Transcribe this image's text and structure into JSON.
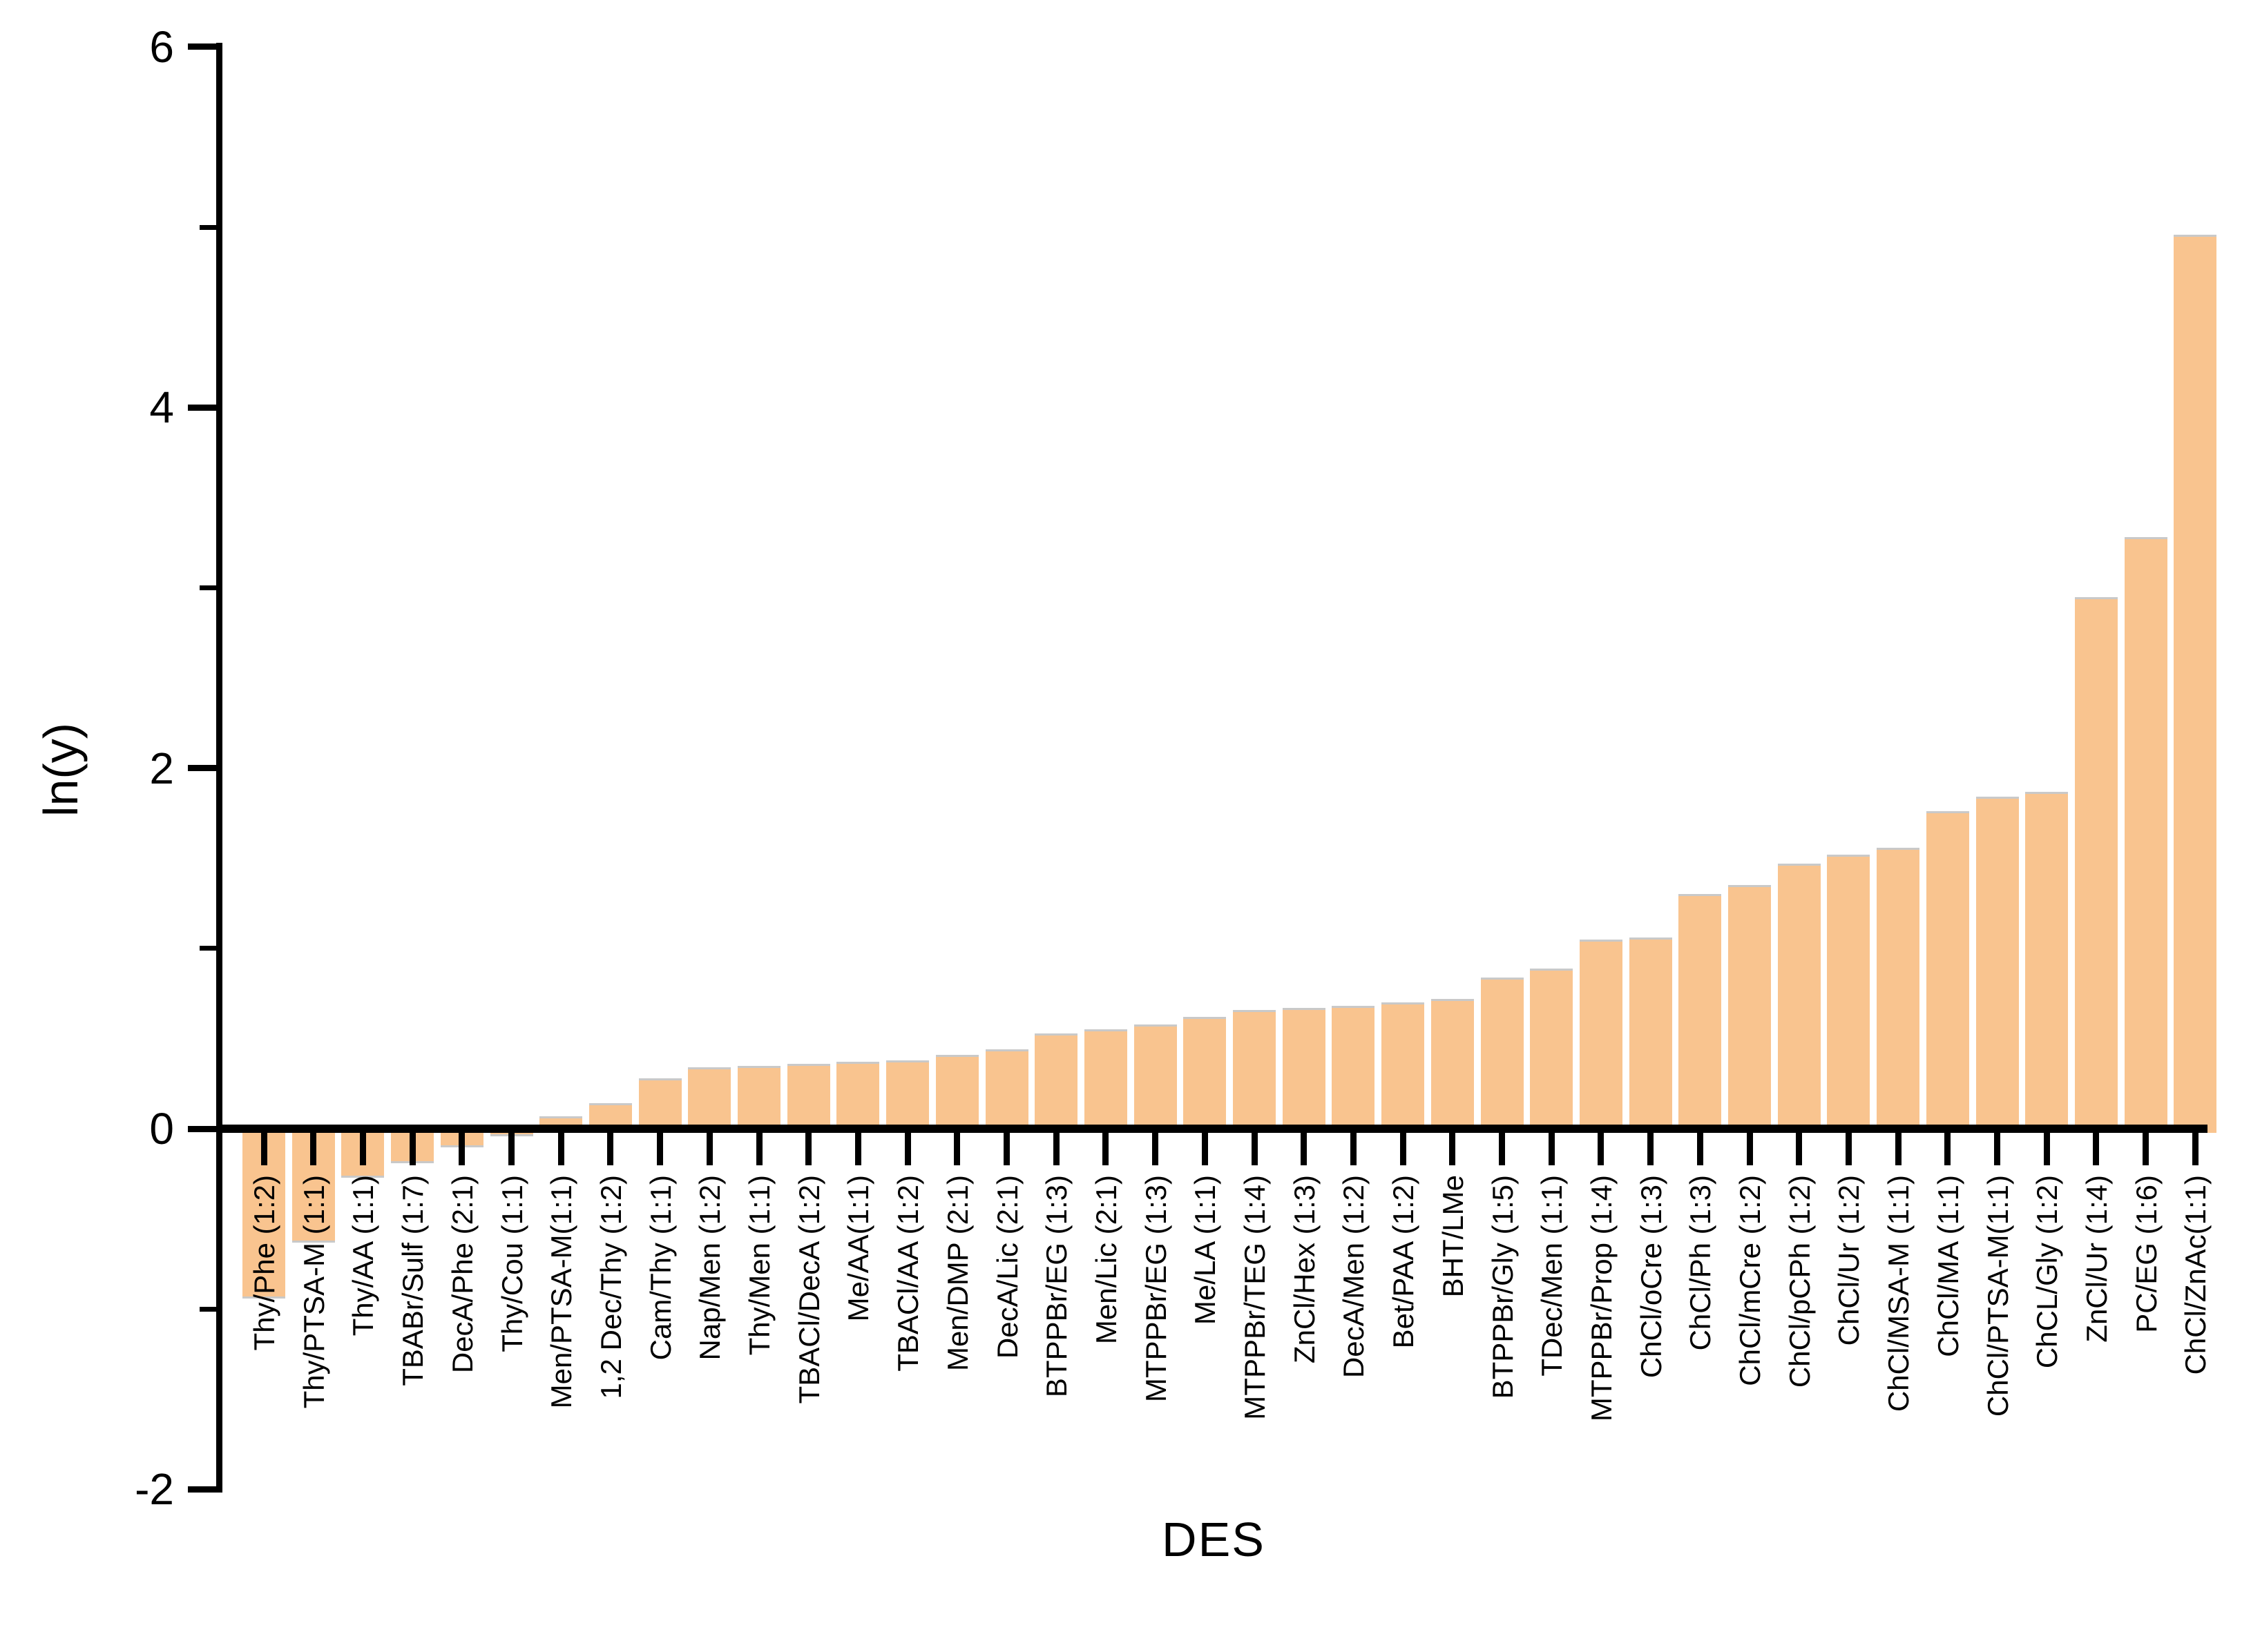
{
  "chart_data": {
    "type": "bar",
    "title": "",
    "xlabel": "DES",
    "ylabel": "ln(y)",
    "categories": [
      "Thy/Phe (1:2)",
      "Thy/PTSA-M (1:1)",
      "Thy/AA (1:1)",
      "TBABr/Sulf (1:7)",
      "DecA/Phe (2:1)",
      "Thy/Cou (1:1)",
      "Men/PTSA-M(1:1)",
      "1,2 Dec/Thy (1:2)",
      "Cam/Thy (1:1)",
      "Nap/Men (1:2)",
      "Thy/Men (1:1)",
      "TBACl/DecA (1:2)",
      "Me/AA(1:1)",
      "TBACl/AA (1:2)",
      "Men/DMP (2:1)",
      "DecA/Lic (2:1)",
      "BTPPBr/EG (1:3)",
      "Men/Lic (2:1)",
      "MTPPBr/EG (1:3)",
      "Me/LA (1:1)",
      "MTPPBr/TEG (1:4)",
      "ZnCl/Hex (1:3)",
      "DecA/Men (1:2)",
      "Bet/PAA (1:2)",
      "BHT/LMe",
      "BTPPBr/Gly (1:5)",
      "TDec/Men (1:1)",
      "MTPPBr/Prop (1:4)",
      "ChCl/oCre (1:3)",
      "ChCl/Ph (1:3)",
      "ChCl/mCre (1:2)",
      "ChCl/pCPh (1:2)",
      "ChCl/Ur (1:2)",
      "ChCl/MSA-M (1:1)",
      "ChCl/MA (1:1)",
      "ChCl/PTSA-M(1:1)",
      "ChCL/Gly (1:2)",
      "ZnCl/Ur (1:4)",
      "PC/EG (1:6)",
      "ChCl/ZnAc(1:1)"
    ],
    "values": [
      -0.92,
      -0.61,
      -0.25,
      -0.17,
      -0.08,
      -0.02,
      0.07,
      0.14,
      0.28,
      0.34,
      0.35,
      0.36,
      0.37,
      0.38,
      0.41,
      0.44,
      0.53,
      0.55,
      0.58,
      0.62,
      0.66,
      0.67,
      0.68,
      0.7,
      0.72,
      0.84,
      0.89,
      1.05,
      1.06,
      1.3,
      1.35,
      1.47,
      1.52,
      1.56,
      1.76,
      1.84,
      1.87,
      2.95,
      3.28,
      4.96
    ],
    "ylim": [
      -2,
      6
    ],
    "yticks_major": [
      6,
      4,
      2,
      0,
      -2
    ],
    "yticks_minor": [
      5,
      3,
      1,
      -1
    ],
    "legend": "none",
    "grid": false,
    "bar_color": "#F9C48F",
    "bar_edge_color": "#C9C9C9",
    "axis_color": "#000000",
    "background": "#FFFFFF"
  }
}
